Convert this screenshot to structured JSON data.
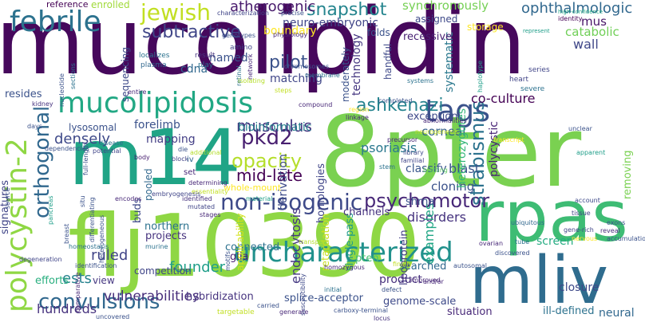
{
  "words": [
    {
      "text": "mucolipidin",
      "color": "#46085c"
    },
    {
      "text": "8pter",
      "color": "#7ad151"
    },
    {
      "text": "flj10390",
      "color": "#8fd744"
    },
    {
      "text": "m14",
      "color": "#20a486"
    },
    {
      "text": "rpas",
      "color": "#3ebc74"
    },
    {
      "text": "mliv",
      "color": "#2f6c8e"
    },
    {
      "text": "mucolipidosis",
      "color": "#22a884"
    },
    {
      "text": "uncharacterized",
      "color": "#21918c"
    },
    {
      "text": "polycystin-2",
      "color": "#8fd744"
    },
    {
      "text": "febrile",
      "color": "#2c728e"
    },
    {
      "text": "non-isogenic",
      "color": "#3e4a89"
    },
    {
      "text": "tags",
      "color": "#3b528b"
    },
    {
      "text": "convulsions",
      "color": "#31688e"
    },
    {
      "text": "jewish",
      "color": "#c2df23"
    },
    {
      "text": "ashkenazi",
      "color": "#25838e"
    },
    {
      "text": "psychomotor",
      "color": "#482878"
    },
    {
      "text": "strabismus",
      "color": "#2c728e"
    },
    {
      "text": "orthogonal",
      "color": "#31688e"
    },
    {
      "text": "pkd2",
      "color": "#481f70"
    },
    {
      "text": "opacity",
      "color": "#b5de2b"
    },
    {
      "text": "snapshot",
      "color": "#25858e"
    },
    {
      "text": "atherogenic",
      "color": "#481a6c"
    },
    {
      "text": "ophthalmologic",
      "color": "#31688e"
    },
    {
      "text": "subtractive",
      "color": "#404688"
    },
    {
      "text": "pilot",
      "color": "#3b528b"
    },
    {
      "text": "mid-late",
      "color": "#440154"
    },
    {
      "text": "musculus",
      "color": "#453781"
    },
    {
      "text": "densely",
      "color": "#3e4989"
    },
    {
      "text": "ruled",
      "color": "#414487"
    },
    {
      "text": "founder",
      "color": "#1f9e89"
    },
    {
      "text": "ests",
      "color": "#26828e"
    },
    {
      "text": "hundreds",
      "color": "#46327e"
    },
    {
      "text": "vulnerabilities",
      "color": "#472d7b"
    },
    {
      "text": "endocytosis",
      "color": "#453882"
    },
    {
      "text": "psoriasis",
      "color": "#2a788e"
    },
    {
      "text": "blast",
      "color": "#3a538b"
    },
    {
      "text": "classify",
      "color": "#39568c"
    },
    {
      "text": "disorders",
      "color": "#46337f"
    },
    {
      "text": "cloning",
      "color": "#3b528b"
    },
    {
      "text": "examples",
      "color": "#21a685"
    },
    {
      "text": "co-culture",
      "color": "#440154"
    },
    {
      "text": "corneal",
      "color": "#355f8d"
    },
    {
      "text": "catabolic",
      "color": "#70cf57"
    },
    {
      "text": "wall",
      "color": "#3f4788"
    },
    {
      "text": "mus",
      "color": "#481467"
    },
    {
      "text": "polycystic",
      "color": "#482475"
    },
    {
      "text": "heterozygotes",
      "color": "#34b679"
    },
    {
      "text": "systematic",
      "color": "#2a788e"
    },
    {
      "text": "neuro-embryonic",
      "color": "#404588"
    },
    {
      "text": "synchronously",
      "color": "#75d054"
    },
    {
      "text": "boundary",
      "color": "#fde725"
    },
    {
      "text": "matching",
      "color": "#404688"
    },
    {
      "text": "mapping",
      "color": "#433e85"
    },
    {
      "text": "forelimb",
      "color": "#3b528b"
    },
    {
      "text": "bioinformatic",
      "color": "#27808e"
    },
    {
      "text": "lysosomal",
      "color": "#3b528b"
    },
    {
      "text": "cdna",
      "color": "#31688e"
    },
    {
      "text": "named",
      "color": "#3b528b"
    },
    {
      "text": "sequencing",
      "color": "#3e4a89"
    },
    {
      "text": "technology",
      "color": "#453781"
    },
    {
      "text": "moderately",
      "color": "#3b528b"
    },
    {
      "text": "derivation",
      "color": "#3e4c8a"
    },
    {
      "text": "homologies",
      "color": "#404588"
    },
    {
      "text": "retardation",
      "color": "#c8e020"
    },
    {
      "text": "lipoprotein",
      "color": "#433d84"
    },
    {
      "text": "single-pass",
      "color": "#1e9b8a"
    },
    {
      "text": "pten",
      "color": "#46c06f"
    },
    {
      "text": "screen",
      "color": "#25ac82"
    },
    {
      "text": "closure",
      "color": "#3e4989"
    },
    {
      "text": "product",
      "color": "#472f7d"
    },
    {
      "text": "searched",
      "color": "#31688e"
    },
    {
      "text": "channels",
      "color": "#46327e"
    },
    {
      "text": "shrna",
      "color": "#3b528b"
    },
    {
      "text": "northern",
      "color": "#2c728e"
    },
    {
      "text": "projects",
      "color": "#46327e"
    },
    {
      "text": "connected",
      "color": "#2d718e"
    },
    {
      "text": "glia",
      "color": "#481f70"
    },
    {
      "text": "competition",
      "color": "#404588"
    },
    {
      "text": "hybridization",
      "color": "#46337f"
    },
    {
      "text": "splice-acceptor",
      "color": "#3b528b"
    },
    {
      "text": "genome-scale",
      "color": "#3e4a89"
    },
    {
      "text": "situation",
      "color": "#482878"
    },
    {
      "text": "ill-defined",
      "color": "#2c728e"
    },
    {
      "text": "neural",
      "color": "#31688e"
    },
    {
      "text": "signatures",
      "color": "#404588"
    },
    {
      "text": "efforts",
      "color": "#29af7f"
    },
    {
      "text": "view",
      "color": "#453781"
    },
    {
      "text": "buds",
      "color": "#3e4a89"
    },
    {
      "text": "pooled",
      "color": "#31688e"
    },
    {
      "text": "applicability",
      "color": "#d2e21b"
    },
    {
      "text": "whole-mount",
      "color": "#fde725"
    },
    {
      "text": "exception",
      "color": "#3e4989"
    },
    {
      "text": "recessive",
      "color": "#482173"
    },
    {
      "text": "folds",
      "color": "#3b528b"
    },
    {
      "text": "handful",
      "color": "#3e4989"
    },
    {
      "text": "assigned",
      "color": "#3e4989"
    },
    {
      "text": "storage",
      "color": "#fde725"
    },
    {
      "text": "removing",
      "color": "#7ad151"
    },
    {
      "text": "reference",
      "color": "#440154"
    },
    {
      "text": "enrolled",
      "color": "#a0da39"
    },
    {
      "text": "resides",
      "color": "#3b528b"
    },
    {
      "text": "identity",
      "color": "#440154"
    },
    {
      "text": "represent",
      "color": "#1f9e89"
    },
    {
      "text": "high-confidence",
      "color": "#22a884"
    },
    {
      "text": "precise",
      "color": "#3b528b"
    },
    {
      "text": "characterization",
      "color": "#404588"
    },
    {
      "text": "amino",
      "color": "#414487"
    },
    {
      "text": "genotypes",
      "color": "#3b528b"
    },
    {
      "text": "physiology",
      "color": "#482878"
    },
    {
      "text": "chromosomes",
      "color": "#3b528b"
    },
    {
      "text": "result",
      "color": "#46327e"
    },
    {
      "text": "localizes",
      "color": "#2c728e"
    },
    {
      "text": "play",
      "color": "#2c728e"
    },
    {
      "text": "plasma",
      "color": "#31688e"
    },
    {
      "text": "entire",
      "color": "#482878"
    },
    {
      "text": "membrane",
      "color": "#2c728e"
    },
    {
      "text": "compound",
      "color": "#482878"
    },
    {
      "text": "completed",
      "color": "#3b528b"
    },
    {
      "text": "region",
      "color": "#fde725"
    },
    {
      "text": "linkage",
      "color": "#482878"
    },
    {
      "text": "kidney",
      "color": "#46327e"
    },
    {
      "text": "days",
      "color": "#3b528b"
    },
    {
      "text": "dependencies",
      "color": "#3b528b"
    },
    {
      "text": "disease",
      "color": "#2c728e"
    },
    {
      "text": "potential",
      "color": "#404588"
    },
    {
      "text": "body",
      "color": "#481f70"
    },
    {
      "text": "iv",
      "color": "#31688e"
    },
    {
      "text": "die",
      "color": "#3b528b"
    },
    {
      "text": "additional",
      "color": "#b5de2b"
    },
    {
      "text": "block",
      "color": "#414487"
    },
    {
      "text": "neurogenesis",
      "color": "#c2df23"
    },
    {
      "text": "abnormalities",
      "color": "#482878"
    },
    {
      "text": "library",
      "color": "#3e4a89"
    },
    {
      "text": "familial",
      "color": "#404588"
    },
    {
      "text": "precursor",
      "color": "#482878"
    },
    {
      "text": "blotting",
      "color": "#5ec962"
    },
    {
      "text": "stem",
      "color": "#2c728e"
    },
    {
      "text": "heart",
      "color": "#414487"
    },
    {
      "text": "severe",
      "color": "#2c728e"
    },
    {
      "text": "systems",
      "color": "#2c728e"
    },
    {
      "text": "series",
      "color": "#404588"
    },
    {
      "text": "haplotype",
      "color": "#1f9e89"
    },
    {
      "text": "unclear",
      "color": "#3b528b"
    },
    {
      "text": "apparent",
      "color": "#1f9e89"
    },
    {
      "text": "account",
      "color": "#3e4a89"
    },
    {
      "text": "ubiquitous",
      "color": "#31688e"
    },
    {
      "text": "tissue",
      "color": "#414487"
    },
    {
      "text": "exons",
      "color": "#3b528b"
    },
    {
      "text": "gene-rich",
      "color": "#404588"
    },
    {
      "text": "reveal",
      "color": "#472d7b"
    },
    {
      "text": "accumulation",
      "color": "#3b528b"
    },
    {
      "text": "nervous",
      "color": "#fde725"
    },
    {
      "text": "tube",
      "color": "#2c728e"
    },
    {
      "text": "discovered",
      "color": "#3b528b"
    },
    {
      "text": "ovarian",
      "color": "#482878"
    },
    {
      "text": "finally",
      "color": "#c2df23"
    },
    {
      "text": "autosomal",
      "color": "#3b528b"
    },
    {
      "text": "improved",
      "color": "#482878"
    },
    {
      "text": "and/or",
      "color": "#482878"
    },
    {
      "text": "locus",
      "color": "#46327e"
    },
    {
      "text": "carboxy-terminal",
      "color": "#3b528b"
    },
    {
      "text": "generate",
      "color": "#482878"
    },
    {
      "text": "initial",
      "color": "#2c728e"
    },
    {
      "text": "defect",
      "color": "#3b528b"
    },
    {
      "text": "homozygous",
      "color": "#482878"
    },
    {
      "text": "transport",
      "color": "#b5de2b"
    },
    {
      "text": "material",
      "color": "#1f9e89"
    },
    {
      "text": "susceptibility",
      "color": "#3e4a89"
    },
    {
      "text": "targetable",
      "color": "#c2df23"
    },
    {
      "text": "motifs",
      "color": "#3b528b"
    },
    {
      "text": "carried",
      "color": "#3b528b"
    },
    {
      "text": "determining",
      "color": "#482878"
    },
    {
      "text": "essentiality",
      "color": "#c2df23"
    },
    {
      "text": "identified",
      "color": "#46327e"
    },
    {
      "text": "mutated",
      "color": "#404588"
    },
    {
      "text": "stages",
      "color": "#482878"
    },
    {
      "text": "murine",
      "color": "#2c728e"
    },
    {
      "text": "differentiating",
      "color": "#3b528b"
    },
    {
      "text": "heterogeneous",
      "color": "#3b528b"
    },
    {
      "text": "breast",
      "color": "#3b528b"
    },
    {
      "text": "situ",
      "color": "#3b528b"
    },
    {
      "text": "encodes",
      "color": "#482878"
    },
    {
      "text": "embryogenesis",
      "color": "#404588"
    },
    {
      "text": "pancreas",
      "color": "#1f9e89"
    },
    {
      "text": "source",
      "color": "#3b528b"
    },
    {
      "text": "full-length",
      "color": "#3b528b"
    },
    {
      "text": "homeostasis",
      "color": "#2c728e"
    },
    {
      "text": "identification",
      "color": "#3b528b"
    },
    {
      "text": "uncovered",
      "color": "#3b528b"
    },
    {
      "text": "degeneration",
      "color": "#404588"
    },
    {
      "text": "comparative",
      "color": "#482878"
    },
    {
      "text": "nucleotide",
      "color": "#3b528b"
    },
    {
      "text": "sections",
      "color": "#2c728e"
    },
    {
      "text": "retinal",
      "color": "#2c728e"
    },
    {
      "text": "network",
      "color": "#482878"
    },
    {
      "text": "isolating",
      "color": "#b5de2b"
    },
    {
      "text": "set",
      "color": "#482878"
    },
    {
      "text": "steps",
      "color": "#c2df23"
    },
    {
      "text": "transcript",
      "color": "#fde725"
    }
  ]
}
